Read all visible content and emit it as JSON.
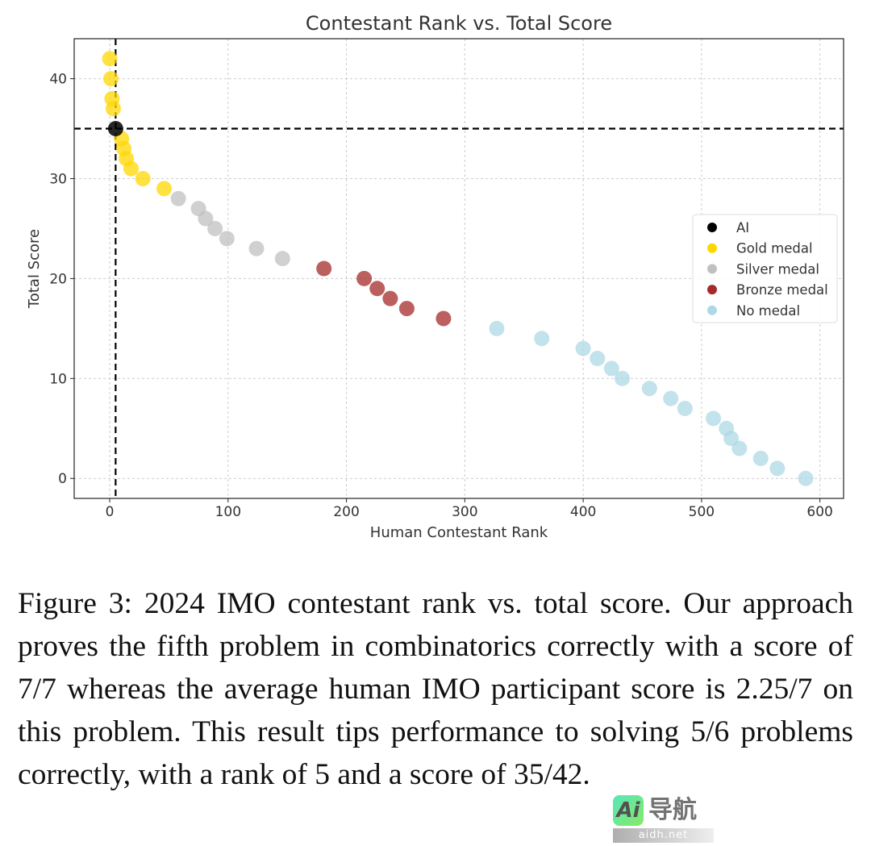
{
  "chart_data": {
    "type": "scatter",
    "title": "Contestant Rank vs. Total Score",
    "xlabel": "Human Contestant Rank",
    "ylabel": "Total Score",
    "xlim": [
      -30,
      620
    ],
    "ylim": [
      -2,
      44
    ],
    "xticks": [
      0,
      100,
      200,
      300,
      400,
      500,
      600
    ],
    "yticks": [
      0,
      10,
      20,
      30,
      40
    ],
    "grid": true,
    "legend_position": "center-right",
    "reference_lines": {
      "x": 5,
      "y": 35
    },
    "series": [
      {
        "name": "AI",
        "color": "#000000",
        "points": [
          [
            5,
            35
          ]
        ]
      },
      {
        "name": "Gold medal",
        "color": "#FFD700",
        "points": [
          [
            0,
            42
          ],
          [
            1,
            40
          ],
          [
            2,
            38
          ],
          [
            3,
            37
          ],
          [
            10,
            34
          ],
          [
            12,
            33
          ],
          [
            14,
            32
          ],
          [
            18,
            31
          ],
          [
            28,
            30
          ],
          [
            46,
            29
          ]
        ]
      },
      {
        "name": "Silver medal",
        "color": "#C0C0C0",
        "points": [
          [
            58,
            28
          ],
          [
            75,
            27
          ],
          [
            81,
            26
          ],
          [
            89,
            25
          ],
          [
            99,
            24
          ],
          [
            124,
            23
          ],
          [
            146,
            22
          ]
        ]
      },
      {
        "name": "Bronze medal",
        "color": "#A52A2A",
        "points": [
          [
            181,
            21
          ],
          [
            215,
            20
          ],
          [
            226,
            19
          ],
          [
            237,
            18
          ],
          [
            251,
            17
          ],
          [
            282,
            16
          ]
        ]
      },
      {
        "name": "No medal",
        "color": "#ADD8E6",
        "points": [
          [
            327,
            15
          ],
          [
            365,
            14
          ],
          [
            400,
            13
          ],
          [
            412,
            12
          ],
          [
            424,
            11
          ],
          [
            433,
            10
          ],
          [
            456,
            9
          ],
          [
            474,
            8
          ],
          [
            486,
            7
          ],
          [
            510,
            6
          ],
          [
            521,
            5
          ],
          [
            525,
            4
          ],
          [
            532,
            3
          ],
          [
            550,
            2
          ],
          [
            564,
            1
          ],
          [
            588,
            0
          ]
        ]
      }
    ]
  },
  "caption": "Figure 3: 2024 IMO contestant rank vs. total score. Our approach proves the fifth problem in combinatorics correctly with a score of 7/7 whereas the average human IMO participant score is 2.25/7 on this problem. This result tips performance to solving 5/6 problems correctly, with a rank of 5 and a score of 35/42.",
  "watermark": {
    "logo": "Ai",
    "text": "导航",
    "url": "aidh.net"
  }
}
